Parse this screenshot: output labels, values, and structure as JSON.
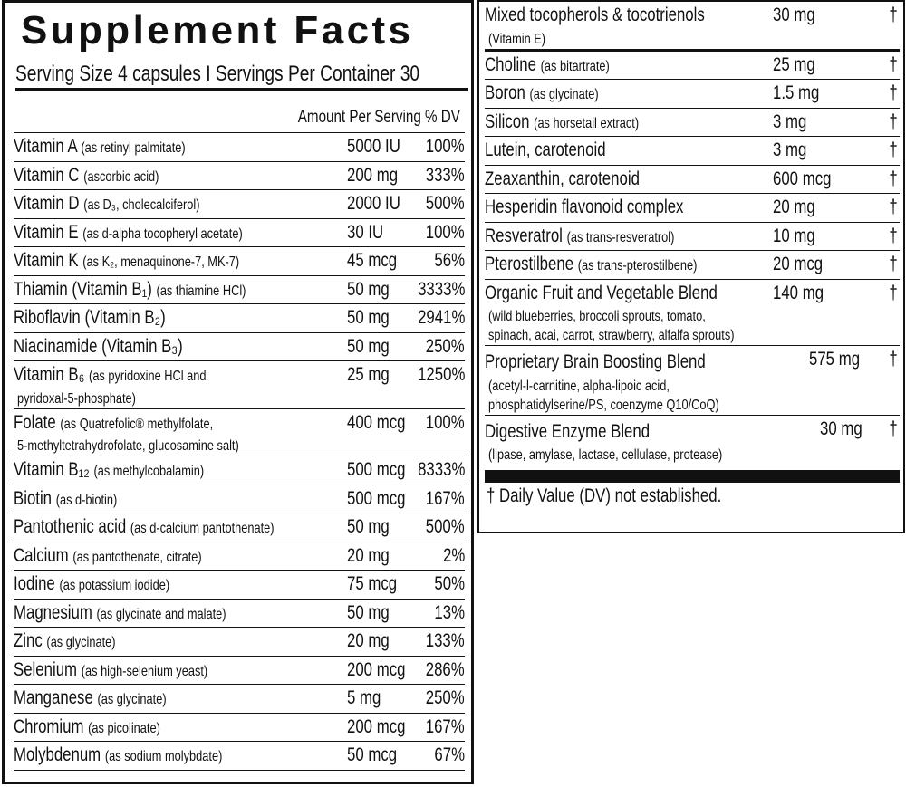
{
  "left": {
    "title": "Supplement Facts",
    "serving": "Serving Size 4 capsules I Servings Per Container 30",
    "column_header": "Amount Per Serving % DV",
    "rows": [
      {
        "name": "Vitamin A",
        "qualifier": "(as retinyl palmitate)",
        "amount": "5000 IU",
        "dv": "100%"
      },
      {
        "name": "Vitamin C",
        "qualifier": "(ascorbic acid)",
        "amount": "200 mg",
        "dv": "333%"
      },
      {
        "name": "Vitamin D",
        "qualifier": "(as D₃, cholecalciferol)",
        "amount": "2000 IU",
        "dv": "500%"
      },
      {
        "name": "Vitamin E",
        "qualifier": "(as d-alpha tocopheryl acetate)",
        "amount": "30 IU",
        "dv": "100%"
      },
      {
        "name": "Vitamin K",
        "qualifier": "(as K₂, menaquinone-7, MK-7)",
        "amount": "45 mcg",
        "dv": "56%"
      },
      {
        "name": "Thiamin (Vitamin B₁)",
        "qualifier": "(as thiamine HCl)",
        "amount": "50 mg",
        "dv": "3333%"
      },
      {
        "name": "Riboflavin (Vitamin B₂)",
        "amount": "50 mg",
        "dv": "2941%"
      },
      {
        "name": "Niacinamide (Vitamin B₃)",
        "amount": "50 mg",
        "dv": "250%"
      },
      {
        "name": "Vitamin B₆",
        "qualifier": "(as pyridoxine HCl and",
        "detail": [
          "pyridoxal-5-phosphate)"
        ],
        "amount": "25 mg",
        "dv": "1250%"
      },
      {
        "name": "Folate",
        "qualifier": "(as Quatrefolic® methylfolate,",
        "detail": [
          "5-methyltetrahydrofolate, glucosamine salt)"
        ],
        "amount": "400 mcg",
        "dv": "100%"
      },
      {
        "name": "Vitamin B₁₂",
        "qualifier": "(as methylcobalamin)",
        "amount": "500 mcg",
        "dv": "8333%"
      },
      {
        "name": "Biotin",
        "qualifier": "(as d-biotin)",
        "amount": "500 mcg",
        "dv": "167%"
      },
      {
        "name": "Pantothenic acid",
        "qualifier": "(as d-calcium pantothenate)",
        "amount": "50 mg",
        "dv": "500%"
      },
      {
        "name": "Calcium",
        "qualifier": "(as pantothenate, citrate)",
        "amount": "20 mg",
        "dv": "2%"
      },
      {
        "name": "Iodine",
        "qualifier": "(as potassium iodide)",
        "amount": "75 mcg",
        "dv": "50%"
      },
      {
        "name": "Magnesium",
        "qualifier": "(as glycinate and malate)",
        "amount": "50 mg",
        "dv": "13%"
      },
      {
        "name": "Zinc",
        "qualifier": "(as glycinate)",
        "amount": "20 mg",
        "dv": "133%"
      },
      {
        "name": "Selenium",
        "qualifier": "(as high-selenium yeast)",
        "amount": "200 mcg",
        "dv": "286%"
      },
      {
        "name": "Manganese",
        "qualifier": "(as glycinate)",
        "amount": "5 mg",
        "dv": "250%"
      },
      {
        "name": "Chromium",
        "qualifier": "(as picolinate)",
        "amount": "200 mcg",
        "dv": "167%"
      },
      {
        "name": "Molybdenum",
        "qualifier": "(as sodium molybdate)",
        "amount": "50 mcg",
        "dv": "67%"
      }
    ]
  },
  "right": {
    "rows": [
      {
        "name": "Mixed tocopherols & tocotrienols",
        "detail": [
          "(Vitamin E)"
        ],
        "amount": "30 mg",
        "dv": "†"
      },
      {
        "name": "Choline",
        "qualifier": "(as bitartrate)",
        "amount": "25 mg",
        "dv": "†"
      },
      {
        "name": "Boron",
        "qualifier": "(as glycinate)",
        "amount": "1.5 mg",
        "dv": "†"
      },
      {
        "name": "Silicon",
        "qualifier": "(as horsetail extract)",
        "amount": "3 mg",
        "dv": "†"
      },
      {
        "name": "Lutein, carotenoid",
        "amount": "3 mg",
        "dv": "†"
      },
      {
        "name": "Zeaxanthin, carotenoid",
        "amount": "600 mcg",
        "dv": "†"
      },
      {
        "name": "Hesperidin flavonoid complex",
        "amount": "20 mg",
        "dv": "†"
      },
      {
        "name": "Resveratrol",
        "qualifier": "(as trans-resveratrol)",
        "amount": "10 mg",
        "dv": "†"
      },
      {
        "name": "Pterostilbene",
        "qualifier": "(as trans-pterostilbene)",
        "amount": "20 mcg",
        "dv": "†"
      },
      {
        "name": "Organic Fruit and Vegetable Blend",
        "detail": [
          "(wild blueberries, broccoli sprouts, tomato,",
          "spinach, acai, carrot, strawberry, alfalfa sprouts)"
        ],
        "amount": "140 mg",
        "dv": "†"
      }
    ],
    "blends": [
      {
        "name": "Proprietary Brain Boosting Blend",
        "detail": [
          "(acetyl-l-carnitine, alpha-lipoic acid,",
          "phosphatidylserine/PS, coenzyme Q10/CoQ)"
        ],
        "amount": "575 mg",
        "dv": "†"
      },
      {
        "name": "Digestive Enzyme Blend",
        "detail": [
          "(lipase, amylase, lactase, cellulase, protease)"
        ],
        "amount": "30 mg",
        "dv": "†"
      }
    ],
    "footnote": "† Daily Value (DV) not established."
  }
}
